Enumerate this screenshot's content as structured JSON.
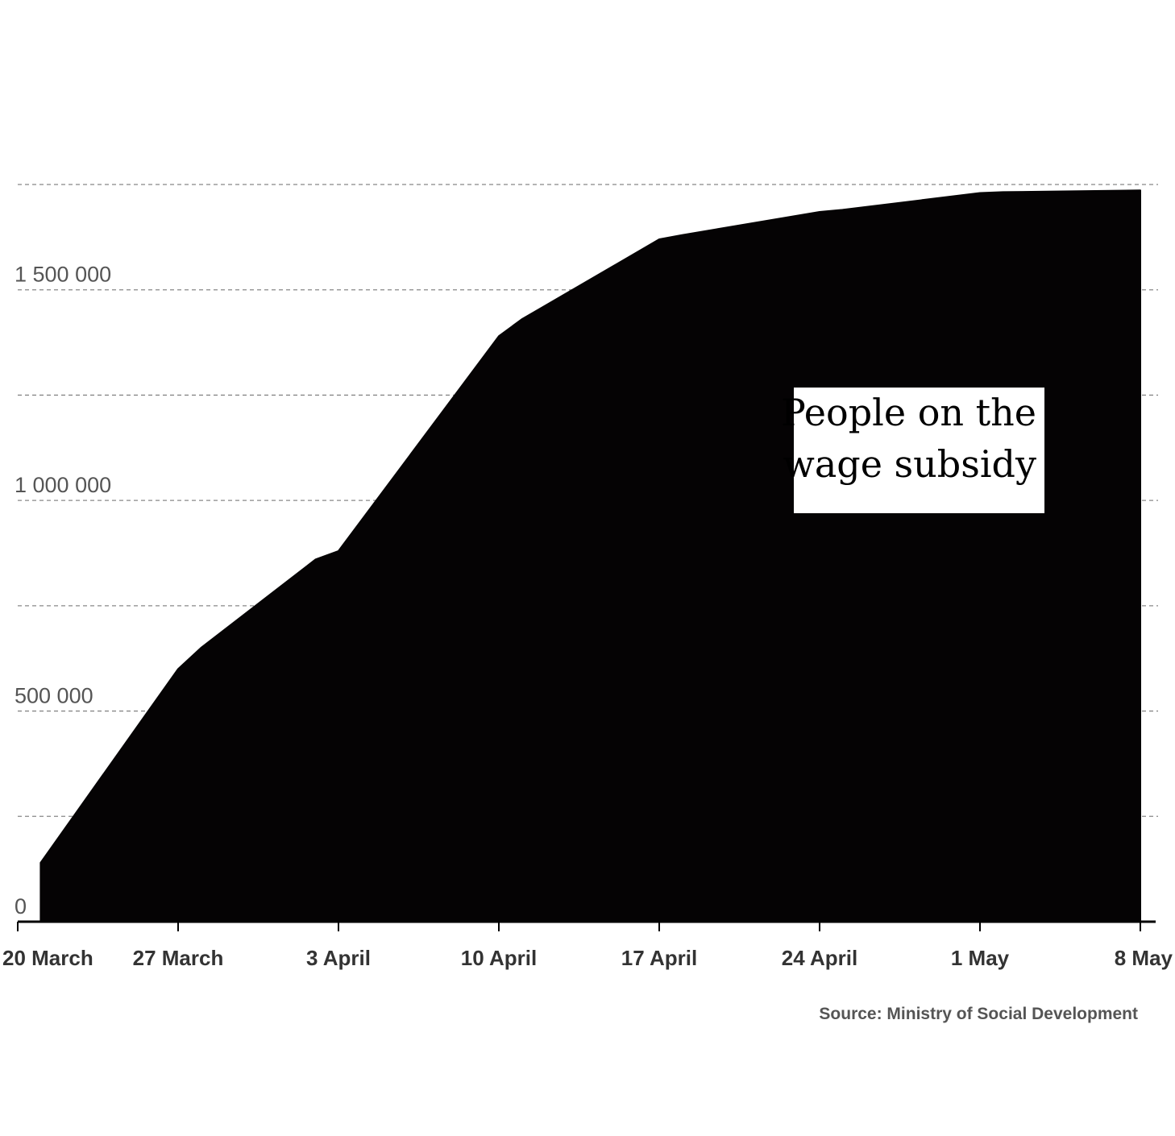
{
  "chart_data": {
    "type": "area",
    "annotation": [
      "People on the",
      "wage subsidy"
    ],
    "source": "Source: Ministry of Social Development",
    "x": [
      "2020-03-21",
      "2020-03-27",
      "2020-03-28",
      "2020-04-02",
      "2020-04-03",
      "2020-04-10",
      "2020-04-11",
      "2020-04-17",
      "2020-04-18",
      "2020-04-24",
      "2020-04-25",
      "2020-05-01",
      "2020-05-02",
      "2020-05-08"
    ],
    "values": [
      140000,
      600000,
      650000,
      860000,
      880000,
      1390000,
      1430000,
      1620000,
      1630000,
      1685000,
      1690000,
      1730000,
      1732000,
      1736000
    ],
    "x_ticks": [
      {
        "date": "2020-03-20",
        "label": "20 March"
      },
      {
        "date": "2020-03-27",
        "label": "27 March"
      },
      {
        "date": "2020-04-03",
        "label": "3 April"
      },
      {
        "date": "2020-04-10",
        "label": "10 April"
      },
      {
        "date": "2020-04-17",
        "label": "17 April"
      },
      {
        "date": "2020-04-24",
        "label": "24 April"
      },
      {
        "date": "2020-05-01",
        "label": "1 May"
      },
      {
        "date": "2020-05-08",
        "label": "8 May"
      }
    ],
    "y_ticks": [
      {
        "value": 0,
        "label": "0"
      },
      {
        "value": 500000,
        "label": "500 000"
      },
      {
        "value": 1000000,
        "label": "1 000 000"
      },
      {
        "value": 1500000,
        "label": "1 500 000"
      }
    ],
    "y_gridlines": [
      250000,
      500000,
      750000,
      1000000,
      1250000,
      1500000,
      1750000
    ],
    "xlim": [
      "2020-03-20",
      "2020-05-08"
    ],
    "ylim": [
      0,
      1750000
    ],
    "grid": true,
    "colors": {
      "area": "#050304",
      "grid": "#888888",
      "axis": "#000000"
    }
  }
}
